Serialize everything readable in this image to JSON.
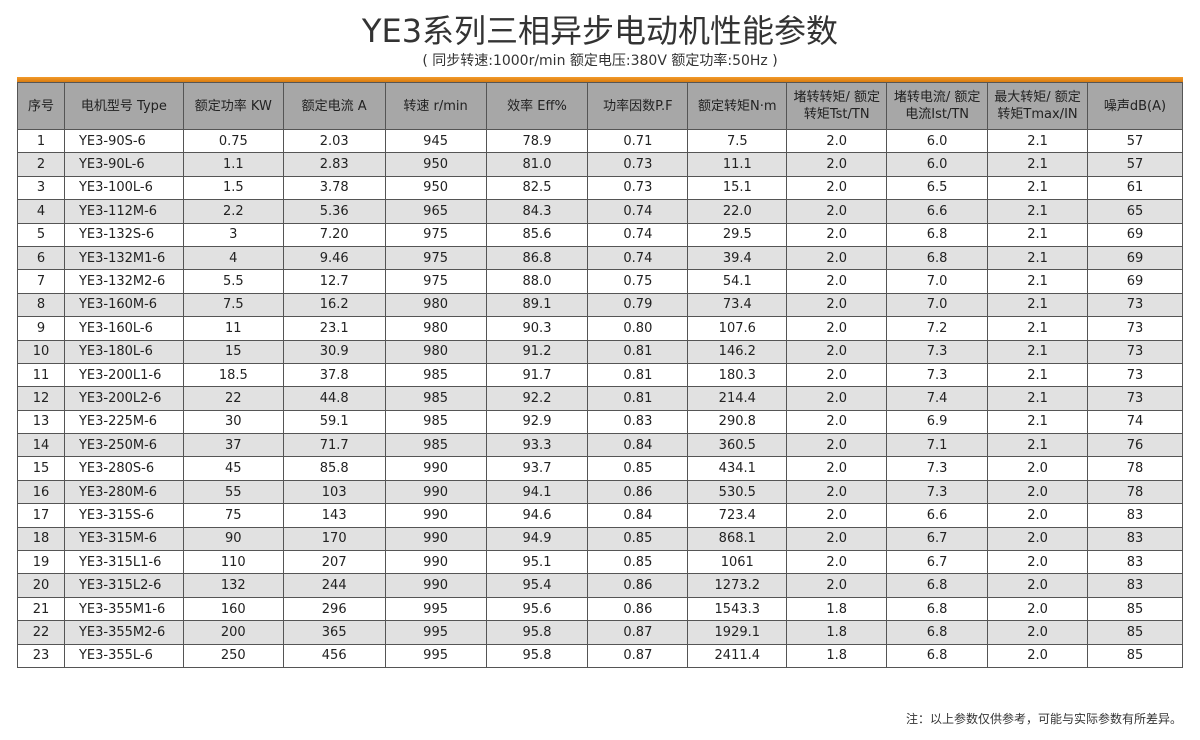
{
  "title": "YE3系列三相异步电动机性能参数",
  "subtitle": "( 同步转速:1000r/min    额定电压:380V    额定功率:50Hz )",
  "accent": "#f0921f",
  "headers": [
    "序号",
    "电机型号 Type",
    "额定功率 KW",
    "额定电流 A",
    "转速 r/min",
    "效率 Eff%",
    "功率因数P.F",
    "额定转矩N·m",
    "堵转转矩/ 额定转矩Tst/TN",
    "堵转电流/ 额定电流Ist/TN",
    "最大转矩/ 额定转矩Tmax/IN",
    "噪声dB(A)"
  ],
  "rows": [
    [
      "1",
      "YE3-90S-6",
      "0.75",
      "2.03",
      "945",
      "78.9",
      "0.71",
      "7.5",
      "2.0",
      "6.0",
      "2.1",
      "57"
    ],
    [
      "2",
      "YE3-90L-6",
      "1.1",
      "2.83",
      "950",
      "81.0",
      "0.73",
      "11.1",
      "2.0",
      "6.0",
      "2.1",
      "57"
    ],
    [
      "3",
      "YE3-100L-6",
      "1.5",
      "3.78",
      "950",
      "82.5",
      "0.73",
      "15.1",
      "2.0",
      "6.5",
      "2.1",
      "61"
    ],
    [
      "4",
      "YE3-112M-6",
      "2.2",
      "5.36",
      "965",
      "84.3",
      "0.74",
      "22.0",
      "2.0",
      "6.6",
      "2.1",
      "65"
    ],
    [
      "5",
      "YE3-132S-6",
      "3",
      "7.20",
      "975",
      "85.6",
      "0.74",
      "29.5",
      "2.0",
      "6.8",
      "2.1",
      "69"
    ],
    [
      "6",
      "YE3-132M1-6",
      "4",
      "9.46",
      "975",
      "86.8",
      "0.74",
      "39.4",
      "2.0",
      "6.8",
      "2.1",
      "69"
    ],
    [
      "7",
      "YE3-132M2-6",
      "5.5",
      "12.7",
      "975",
      "88.0",
      "0.75",
      "54.1",
      "2.0",
      "7.0",
      "2.1",
      "69"
    ],
    [
      "8",
      "YE3-160M-6",
      "7.5",
      "16.2",
      "980",
      "89.1",
      "0.79",
      "73.4",
      "2.0",
      "7.0",
      "2.1",
      "73"
    ],
    [
      "9",
      "YE3-160L-6",
      "11",
      "23.1",
      "980",
      "90.3",
      "0.80",
      "107.6",
      "2.0",
      "7.2",
      "2.1",
      "73"
    ],
    [
      "10",
      "YE3-180L-6",
      "15",
      "30.9",
      "980",
      "91.2",
      "0.81",
      "146.2",
      "2.0",
      "7.3",
      "2.1",
      "73"
    ],
    [
      "11",
      "YE3-200L1-6",
      "18.5",
      "37.8",
      "985",
      "91.7",
      "0.81",
      "180.3",
      "2.0",
      "7.3",
      "2.1",
      "73"
    ],
    [
      "12",
      "YE3-200L2-6",
      "22",
      "44.8",
      "985",
      "92.2",
      "0.81",
      "214.4",
      "2.0",
      "7.4",
      "2.1",
      "73"
    ],
    [
      "13",
      "YE3-225M-6",
      "30",
      "59.1",
      "985",
      "92.9",
      "0.83",
      "290.8",
      "2.0",
      "6.9",
      "2.1",
      "74"
    ],
    [
      "14",
      "YE3-250M-6",
      "37",
      "71.7",
      "985",
      "93.3",
      "0.84",
      "360.5",
      "2.0",
      "7.1",
      "2.1",
      "76"
    ],
    [
      "15",
      "YE3-280S-6",
      "45",
      "85.8",
      "990",
      "93.7",
      "0.85",
      "434.1",
      "2.0",
      "7.3",
      "2.0",
      "78"
    ],
    [
      "16",
      "YE3-280M-6",
      "55",
      "103",
      "990",
      "94.1",
      "0.86",
      "530.5",
      "2.0",
      "7.3",
      "2.0",
      "78"
    ],
    [
      "17",
      "YE3-315S-6",
      "75",
      "143",
      "990",
      "94.6",
      "0.84",
      "723.4",
      "2.0",
      "6.6",
      "2.0",
      "83"
    ],
    [
      "18",
      "YE3-315M-6",
      "90",
      "170",
      "990",
      "94.9",
      "0.85",
      "868.1",
      "2.0",
      "6.7",
      "2.0",
      "83"
    ],
    [
      "19",
      "YE3-315L1-6",
      "110",
      "207",
      "990",
      "95.1",
      "0.85",
      "1061",
      "2.0",
      "6.7",
      "2.0",
      "83"
    ],
    [
      "20",
      "YE3-315L2-6",
      "132",
      "244",
      "990",
      "95.4",
      "0.86",
      "1273.2",
      "2.0",
      "6.8",
      "2.0",
      "83"
    ],
    [
      "21",
      "YE3-355M1-6",
      "160",
      "296",
      "995",
      "95.6",
      "0.86",
      "1543.3",
      "1.8",
      "6.8",
      "2.0",
      "85"
    ],
    [
      "22",
      "YE3-355M2-6",
      "200",
      "365",
      "995",
      "95.8",
      "0.87",
      "1929.1",
      "1.8",
      "6.8",
      "2.0",
      "85"
    ],
    [
      "23",
      "YE3-355L-6",
      "250",
      "456",
      "995",
      "95.8",
      "0.87",
      "2411.4",
      "1.8",
      "6.8",
      "2.0",
      "85"
    ]
  ],
  "note": "注：以上参数仅供参考，可能与实际参数有所差异。"
}
